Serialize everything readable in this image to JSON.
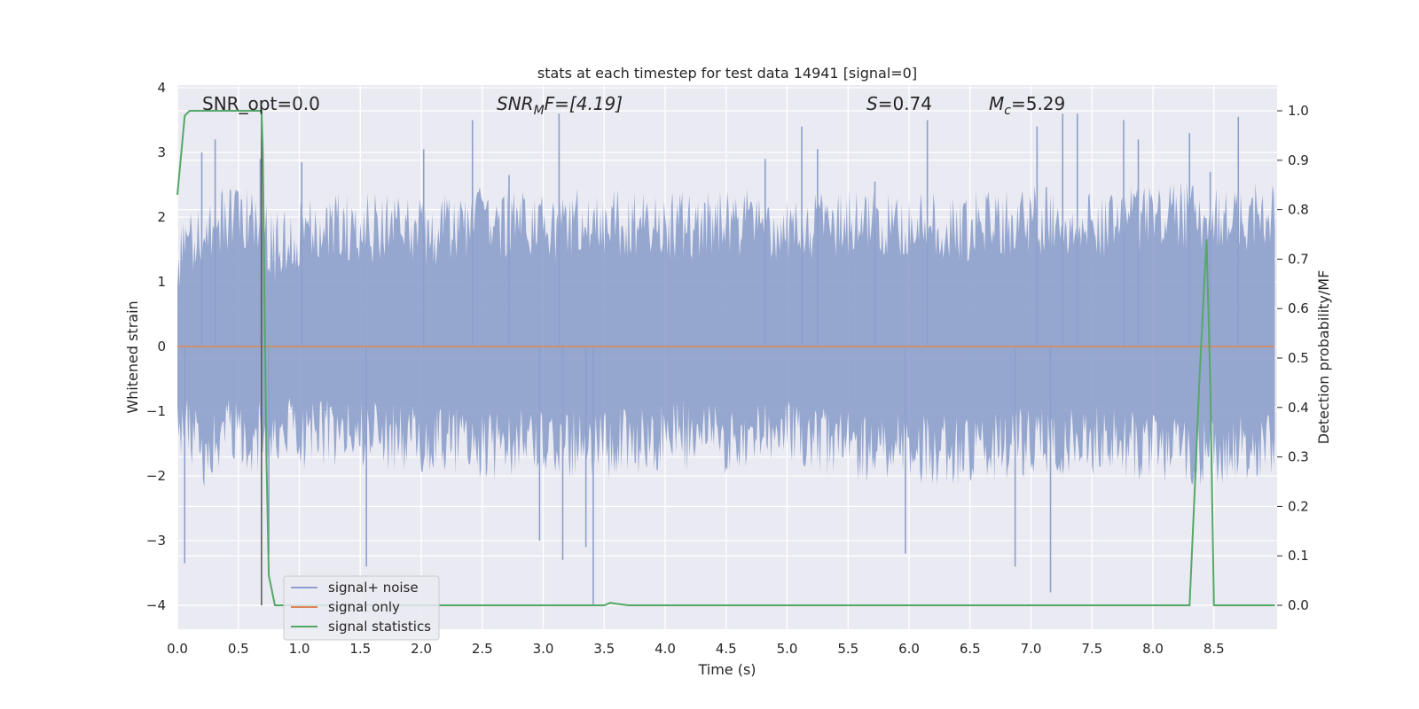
{
  "chart_data": {
    "type": "line",
    "title": "stats at each timestep for test data 14941 [signal=0]",
    "xlabel": "Time (s)",
    "ylabel_left": "Whitened strain",
    "ylabel_right": "Detection probability/MF",
    "xlim": [
      0.0,
      9.0
    ],
    "ylim_left": [
      -4.35,
      4.05
    ],
    "ylim_right": [
      -0.045,
      1.045
    ],
    "xticks": [
      0.0,
      0.5,
      1.0,
      1.5,
      2.0,
      2.5,
      3.0,
      3.5,
      4.0,
      4.5,
      5.0,
      5.5,
      6.0,
      6.5,
      7.0,
      7.5,
      8.0,
      8.5
    ],
    "xtick_labels": [
      "0.0",
      "0.5",
      "1.0",
      "1.5",
      "2.0",
      "2.5",
      "3.0",
      "3.5",
      "4.0",
      "4.5",
      "5.0",
      "5.5",
      "6.0",
      "6.5",
      "7.0",
      "7.5",
      "8.0",
      "8.5"
    ],
    "yticks_left": [
      4,
      3,
      2,
      1,
      0,
      -1,
      -2,
      -3,
      -4
    ],
    "ytick_labels_left": [
      "4",
      "3",
      "2",
      "1",
      "0",
      "−1",
      "−2",
      "−3",
      "−4"
    ],
    "yticks_right": [
      1.0,
      0.9,
      0.8,
      0.7,
      0.6,
      0.5,
      0.4,
      0.3,
      0.2,
      0.1,
      0.0
    ],
    "ytick_labels_right": [
      "1.0",
      "0.9",
      "0.8",
      "0.7",
      "0.6",
      "0.5",
      "0.4",
      "0.3",
      "0.2",
      "0.1",
      "0.0"
    ],
    "grid": true,
    "legend_placement": "lower-left",
    "annotations": {
      "snr_opt": "SNR_opt=0.0",
      "snr_mf_main": "SNR",
      "snr_mf_sub": "M",
      "snr_mf_rest": "F=[4.19]",
      "s_main": "S",
      "s_rest": "=0.74",
      "mc_main": "M",
      "mc_sub": "c",
      "mc_rest": "=5.29"
    },
    "vertical_marker_x": 0.69,
    "series": [
      {
        "name": "signal+ noise",
        "color": "#8da0cb",
        "axis": "left",
        "envelope_upper": [
          [
            0.0,
            1.7
          ],
          [
            0.2,
            2.2
          ],
          [
            0.4,
            2.3
          ],
          [
            0.6,
            2.4
          ],
          [
            0.8,
            1.9
          ],
          [
            1.0,
            2.1
          ],
          [
            1.5,
            2.2
          ],
          [
            2.0,
            2.1
          ],
          [
            2.5,
            2.3
          ],
          [
            3.0,
            2.2
          ],
          [
            3.5,
            2.3
          ],
          [
            4.0,
            2.2
          ],
          [
            4.5,
            2.3
          ],
          [
            5.0,
            2.2
          ],
          [
            5.5,
            2.3
          ],
          [
            6.0,
            2.2
          ],
          [
            6.5,
            2.2
          ],
          [
            7.0,
            2.3
          ],
          [
            7.5,
            2.2
          ],
          [
            8.0,
            2.3
          ],
          [
            8.5,
            2.4
          ],
          [
            9.0,
            2.3
          ]
        ],
        "envelope_lower": [
          [
            0.0,
            -1.5
          ],
          [
            0.2,
            -2.0
          ],
          [
            0.4,
            -1.7
          ],
          [
            0.6,
            -1.8
          ],
          [
            0.8,
            -1.6
          ],
          [
            1.0,
            -1.7
          ],
          [
            1.5,
            -1.7
          ],
          [
            2.0,
            -1.8
          ],
          [
            2.5,
            -1.9
          ],
          [
            3.0,
            -1.8
          ],
          [
            3.5,
            -1.9
          ],
          [
            4.0,
            -1.7
          ],
          [
            4.5,
            -1.8
          ],
          [
            5.0,
            -1.7
          ],
          [
            5.5,
            -1.9
          ],
          [
            6.0,
            -1.9
          ],
          [
            6.5,
            -2.0
          ],
          [
            7.0,
            -1.8
          ],
          [
            7.5,
            -1.8
          ],
          [
            8.0,
            -1.9
          ],
          [
            8.5,
            -2.0
          ],
          [
            9.0,
            -1.8
          ]
        ],
        "peaks": [
          [
            0.06,
            -3.35
          ],
          [
            0.2,
            3.0
          ],
          [
            0.31,
            3.2
          ],
          [
            0.68,
            2.9
          ],
          [
            0.75,
            -3.2
          ],
          [
            1.02,
            2.85
          ],
          [
            1.55,
            -3.4
          ],
          [
            2.02,
            3.05
          ],
          [
            2.42,
            3.5
          ],
          [
            2.72,
            2.65
          ],
          [
            2.97,
            -3.0
          ],
          [
            3.13,
            3.6
          ],
          [
            3.16,
            -3.3
          ],
          [
            3.35,
            -3.1
          ],
          [
            3.41,
            -4.0
          ],
          [
            4.82,
            2.9
          ],
          [
            5.12,
            3.4
          ],
          [
            5.25,
            3.05
          ],
          [
            5.72,
            2.55
          ],
          [
            5.97,
            -3.2
          ],
          [
            6.15,
            3.5
          ],
          [
            6.87,
            -3.4
          ],
          [
            7.05,
            3.4
          ],
          [
            7.16,
            -3.8
          ],
          [
            7.26,
            3.6
          ],
          [
            7.38,
            3.6
          ],
          [
            7.76,
            3.5
          ],
          [
            7.88,
            3.2
          ],
          [
            8.3,
            3.3
          ],
          [
            8.47,
            2.7
          ],
          [
            8.7,
            3.55
          ]
        ]
      },
      {
        "name": "signal only",
        "color": "#dd8452",
        "axis": "left",
        "x": [
          0.0,
          9.0
        ],
        "y": [
          0.0,
          0.0
        ]
      },
      {
        "name": "signal statistics",
        "color": "#55a868",
        "axis": "right",
        "x": [
          0.0,
          0.06,
          0.1,
          0.2,
          0.4,
          0.6,
          0.66,
          0.69,
          0.7,
          0.73,
          0.75,
          0.8,
          1.0,
          2.0,
          3.0,
          3.5,
          3.55,
          3.6,
          3.7,
          4.0,
          5.0,
          6.0,
          7.0,
          8.0,
          8.3,
          8.34,
          8.38,
          8.42,
          8.44,
          8.47,
          8.5,
          8.6,
          9.0
        ],
        "y": [
          0.83,
          0.99,
          1.0,
          1.0,
          1.0,
          1.0,
          1.0,
          1.0,
          0.92,
          0.3,
          0.06,
          0.0,
          0.0,
          0.0,
          0.0,
          0.0,
          0.005,
          0.003,
          0.0,
          0.0,
          0.0,
          0.0,
          0.0,
          0.0,
          0.0,
          0.22,
          0.45,
          0.65,
          0.74,
          0.45,
          0.0,
          0.0,
          0.0
        ]
      }
    ]
  }
}
